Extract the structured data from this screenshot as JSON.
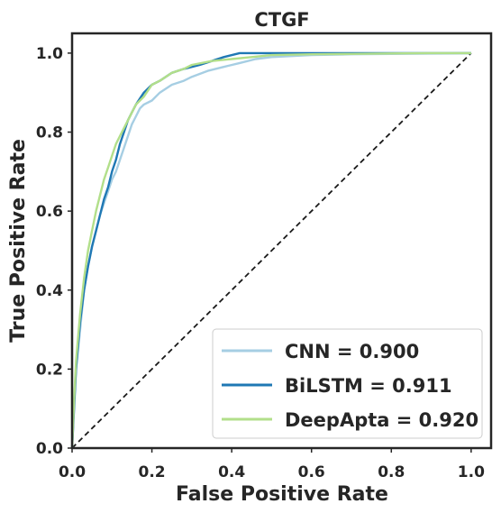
{
  "chart_data": {
    "type": "line",
    "title": "CTGF",
    "xlabel": "False Positive Rate",
    "ylabel": "True Positive Rate",
    "xlim": [
      0,
      1.05
    ],
    "ylim": [
      0,
      1.05
    ],
    "xticks": [
      0.0,
      0.2,
      0.4,
      0.6,
      0.8,
      1.0
    ],
    "yticks": [
      0.0,
      0.2,
      0.4,
      0.6,
      0.8,
      1.0
    ],
    "xtick_labels": [
      "0.0",
      "0.2",
      "0.4",
      "0.6",
      "0.8",
      "1.0"
    ],
    "ytick_labels": [
      "0.0",
      "0.2",
      "0.4",
      "0.6",
      "0.8",
      "1.0"
    ],
    "grid": false,
    "legend_position": "bottom-right",
    "diagonal": {
      "x": [
        0,
        1
      ],
      "y": [
        0,
        1
      ],
      "color": "#1a1a1a",
      "style": "dashed"
    },
    "series": [
      {
        "name": "CNN = 0.900",
        "color": "#a6cee3",
        "x": [
          0,
          0.005,
          0.01,
          0.02,
          0.03,
          0.04,
          0.05,
          0.06,
          0.07,
          0.08,
          0.09,
          0.1,
          0.11,
          0.12,
          0.13,
          0.14,
          0.15,
          0.16,
          0.17,
          0.18,
          0.2,
          0.22,
          0.25,
          0.28,
          0.3,
          0.34,
          0.38,
          0.42,
          0.46,
          0.5,
          0.6,
          0.7,
          0.8,
          0.9,
          1.0
        ],
        "y": [
          0,
          0.12,
          0.2,
          0.3,
          0.4,
          0.46,
          0.51,
          0.55,
          0.59,
          0.62,
          0.65,
          0.68,
          0.7,
          0.73,
          0.76,
          0.79,
          0.82,
          0.84,
          0.86,
          0.87,
          0.88,
          0.9,
          0.92,
          0.93,
          0.94,
          0.955,
          0.965,
          0.975,
          0.985,
          0.99,
          0.995,
          0.997,
          0.998,
          0.999,
          1.0
        ]
      },
      {
        "name": "BiLSTM = 0.911",
        "color": "#1f78b4",
        "x": [
          0,
          0.005,
          0.01,
          0.02,
          0.03,
          0.04,
          0.05,
          0.06,
          0.07,
          0.08,
          0.09,
          0.1,
          0.11,
          0.12,
          0.13,
          0.14,
          0.15,
          0.16,
          0.18,
          0.2,
          0.22,
          0.25,
          0.28,
          0.3,
          0.32,
          0.35,
          0.38,
          0.42,
          0.48,
          0.55,
          0.65,
          0.8,
          0.92,
          1.0
        ],
        "y": [
          0,
          0.1,
          0.2,
          0.32,
          0.4,
          0.46,
          0.51,
          0.55,
          0.59,
          0.63,
          0.66,
          0.7,
          0.73,
          0.77,
          0.8,
          0.83,
          0.85,
          0.87,
          0.9,
          0.92,
          0.93,
          0.95,
          0.96,
          0.965,
          0.97,
          0.98,
          0.99,
          1.0,
          1.0,
          1.0,
          1.0,
          1.0,
          1.0,
          1.0
        ]
      },
      {
        "name": "DeepApta = 0.920",
        "color": "#b2df8a",
        "x": [
          0,
          0.005,
          0.01,
          0.02,
          0.03,
          0.04,
          0.05,
          0.06,
          0.07,
          0.08,
          0.09,
          0.1,
          0.11,
          0.12,
          0.13,
          0.14,
          0.16,
          0.18,
          0.2,
          0.22,
          0.25,
          0.28,
          0.3,
          0.35,
          0.4,
          0.45,
          0.5,
          0.6,
          0.7,
          0.8,
          0.9,
          1.0
        ],
        "y": [
          0,
          0.12,
          0.22,
          0.34,
          0.43,
          0.5,
          0.55,
          0.6,
          0.64,
          0.68,
          0.71,
          0.74,
          0.77,
          0.79,
          0.81,
          0.83,
          0.87,
          0.89,
          0.92,
          0.93,
          0.95,
          0.96,
          0.97,
          0.98,
          0.985,
          0.99,
          0.995,
          0.997,
          0.998,
          0.999,
          1.0,
          1.0
        ]
      }
    ]
  }
}
